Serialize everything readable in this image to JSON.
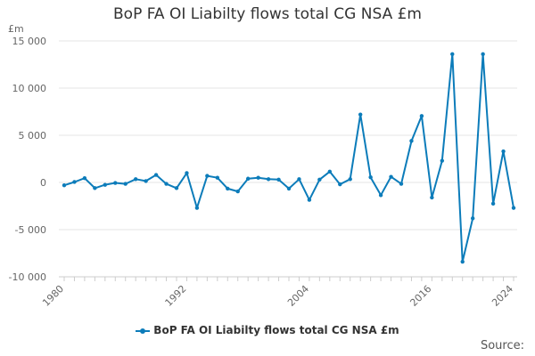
{
  "chart_data": {
    "type": "line",
    "title": "BoP FA OI Liabilty flows total CG NSA £m",
    "ylabel": "£m",
    "xlabel": "",
    "ylim": [
      -10000,
      15000
    ],
    "xlim": [
      1980,
      2024
    ],
    "y_ticks": [
      -10000,
      -5000,
      0,
      5000,
      10000,
      15000
    ],
    "y_tick_labels": [
      "-10 000",
      "-5 000",
      "0",
      "5 000",
      "10 000",
      "15 000"
    ],
    "x_ticks": [
      1980,
      1992,
      2004,
      2016,
      2024
    ],
    "x_tick_labels": [
      "1980",
      "1992",
      "2004",
      "2016",
      "2024"
    ],
    "grid": true,
    "legend_position": "bottom",
    "series": [
      {
        "name": "BoP FA OI Liabilty flows total CG NSA £m",
        "color": "#0c7cba",
        "x": [
          1980,
          1981,
          1982,
          1983,
          1984,
          1985,
          1986,
          1987,
          1988,
          1989,
          1990,
          1991,
          1992,
          1993,
          1994,
          1995,
          1996,
          1997,
          1998,
          1999,
          2000,
          2001,
          2002,
          2003,
          2004,
          2005,
          2006,
          2007,
          2008,
          2009,
          2010,
          2011,
          2012,
          2013,
          2014,
          2015,
          2016,
          2017,
          2018,
          2019,
          2020,
          2021,
          2022,
          2023,
          2024
        ],
        "values": [
          -300,
          50,
          450,
          -600,
          -250,
          -50,
          -150,
          350,
          150,
          800,
          -150,
          -600,
          1000,
          -2700,
          700,
          500,
          -650,
          -950,
          400,
          500,
          350,
          300,
          -650,
          350,
          -1850,
          300,
          1150,
          -200,
          350,
          7200,
          550,
          -1350,
          600,
          -150,
          4400,
          7050,
          -1600,
          2300,
          13600,
          -8400,
          -3800,
          13600,
          -2250,
          3300,
          -2700
        ]
      }
    ],
    "source_label": "Source:"
  }
}
